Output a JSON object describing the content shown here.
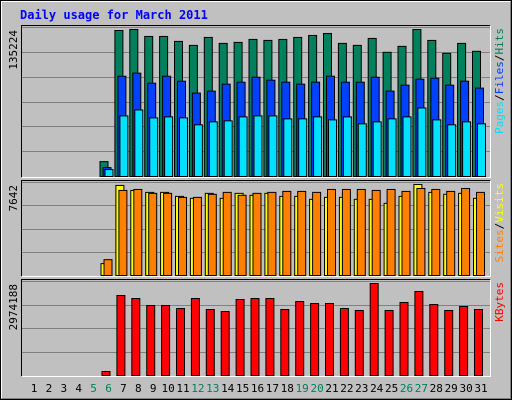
{
  "legend_separator": "/",
  "chart_data": [
    {
      "type": "bar",
      "title": "Daily usage for March 2011",
      "ylim": [
        0,
        135224
      ],
      "yticks": [
        135224
      ],
      "grid_lines": 6,
      "series": [
        {
          "name": "Hits",
          "color": "#00805c",
          "values": [
            0,
            0,
            0,
            0,
            0,
            13500,
            132500,
            133400,
            127100,
            127100,
            122600,
            119000,
            126200,
            120800,
            121700,
            124400,
            123500,
            124400,
            126200,
            128000,
            129800,
            120800,
            119000,
            125300,
            112700,
            118100,
            133400,
            123500,
            111800,
            120800,
            113600
          ]
        },
        {
          "name": "Files",
          "color": "#0040ff",
          "values": [
            0,
            0,
            0,
            0,
            0,
            8100,
            91000,
            93800,
            84700,
            91000,
            86500,
            75700,
            77500,
            83800,
            85600,
            90100,
            87400,
            85600,
            83800,
            85600,
            91000,
            85600,
            85600,
            90100,
            77500,
            82900,
            88300,
            89200,
            82900,
            86500,
            80200
          ]
        },
        {
          "name": "Pages",
          "color": "#00e0ff",
          "values": [
            0,
            0,
            0,
            0,
            0,
            6300,
            55000,
            60400,
            53200,
            54100,
            53200,
            46900,
            49600,
            50500,
            54100,
            55000,
            55000,
            52300,
            52300,
            54100,
            51400,
            54100,
            47800,
            49600,
            52300,
            54100,
            62200,
            51400,
            46900,
            49600,
            47800
          ]
        }
      ]
    },
    {
      "type": "bar",
      "ylim": [
        0,
        7642
      ],
      "yticks": [
        7642
      ],
      "grid_lines": 4,
      "series": [
        {
          "name": "Visits",
          "color": "#ffff00",
          "values": [
            0,
            0,
            0,
            0,
            0,
            976,
            7400,
            6990,
            6830,
            6830,
            6500,
            6340,
            6750,
            6340,
            6750,
            6590,
            6750,
            6500,
            6500,
            6260,
            6420,
            6420,
            6260,
            6260,
            5930,
            6500,
            7480,
            6830,
            6670,
            6750,
            6340
          ]
        },
        {
          "name": "Sites",
          "color": "#ff8000",
          "values": [
            0,
            0,
            0,
            0,
            0,
            1300,
            6990,
            7070,
            6750,
            6750,
            6420,
            6420,
            6670,
            6830,
            6590,
            6750,
            6830,
            6910,
            6910,
            6830,
            7070,
            7070,
            7070,
            6990,
            7070,
            6910,
            7150,
            7070,
            6910,
            7150,
            6830
          ]
        }
      ]
    },
    {
      "type": "bar",
      "ylim": [
        0,
        2974188
      ],
      "yticks": [
        2974188
      ],
      "grid_lines": 4,
      "categories": [
        "1",
        "2",
        "3",
        "4",
        "5",
        "6",
        "7",
        "8",
        "9",
        "10",
        "11",
        "12",
        "13",
        "14",
        "15",
        "16",
        "17",
        "18",
        "19",
        "20",
        "21",
        "22",
        "23",
        "24",
        "25",
        "26",
        "27",
        "28",
        "29",
        "30",
        "31"
      ],
      "category_colors": [
        "#000000",
        "#000000",
        "#000000",
        "#000000",
        "#00805c",
        "#00805c",
        "#000000",
        "#000000",
        "#000000",
        "#000000",
        "#000000",
        "#00805c",
        "#00805c",
        "#000000",
        "#000000",
        "#000000",
        "#000000",
        "#000000",
        "#00805c",
        "#00805c",
        "#000000",
        "#000000",
        "#000000",
        "#000000",
        "#000000",
        "#00805c",
        "#00805c",
        "#000000",
        "#000000",
        "#000000",
        "#000000"
      ],
      "series": [
        {
          "name": "KBytes",
          "color": "#ff0000",
          "values": [
            0,
            0,
            0,
            0,
            0,
            127000,
            2531000,
            2436000,
            2215000,
            2215000,
            2120000,
            2436000,
            2088000,
            2025000,
            2405000,
            2436000,
            2436000,
            2088000,
            2341000,
            2278000,
            2278000,
            2120000,
            2057000,
            2911000,
            2057000,
            2310000,
            2658000,
            2246000,
            2057000,
            2183000,
            2088000
          ]
        }
      ]
    }
  ]
}
